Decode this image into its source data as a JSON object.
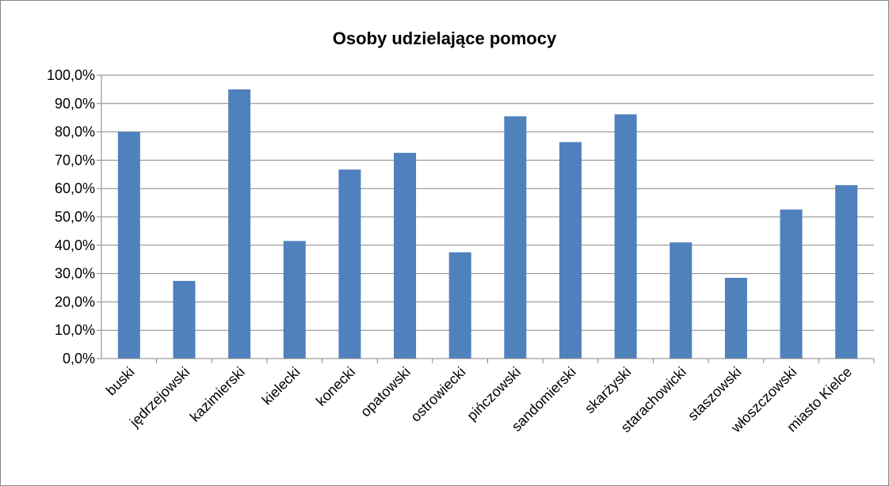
{
  "chart_data": {
    "type": "bar",
    "title": "Osoby udzielające pomocy",
    "categories": [
      "buski",
      "jędrzejowski",
      "kazimierski",
      "kielecki",
      "konecki",
      "opatowski",
      "ostrowiecki",
      "pińczowski",
      "sandomierski",
      "skarżyski",
      "starachowicki",
      "staszowski",
      "włoszczowski",
      "miasto Kielce"
    ],
    "values": [
      80.0,
      27.4,
      95.0,
      41.5,
      66.7,
      72.6,
      37.5,
      85.5,
      76.4,
      86.2,
      41.0,
      28.5,
      52.6,
      61.2
    ],
    "ylim": [
      0,
      100
    ],
    "yticks": [
      "0,0%",
      "10,0%",
      "20,0%",
      "30,0%",
      "40,0%",
      "50,0%",
      "60,0%",
      "70,0%",
      "80,0%",
      "90,0%",
      "100,0%"
    ],
    "grid": true,
    "legend": "none",
    "bar_color": "#4f81bd",
    "grid_color": "#868686"
  }
}
